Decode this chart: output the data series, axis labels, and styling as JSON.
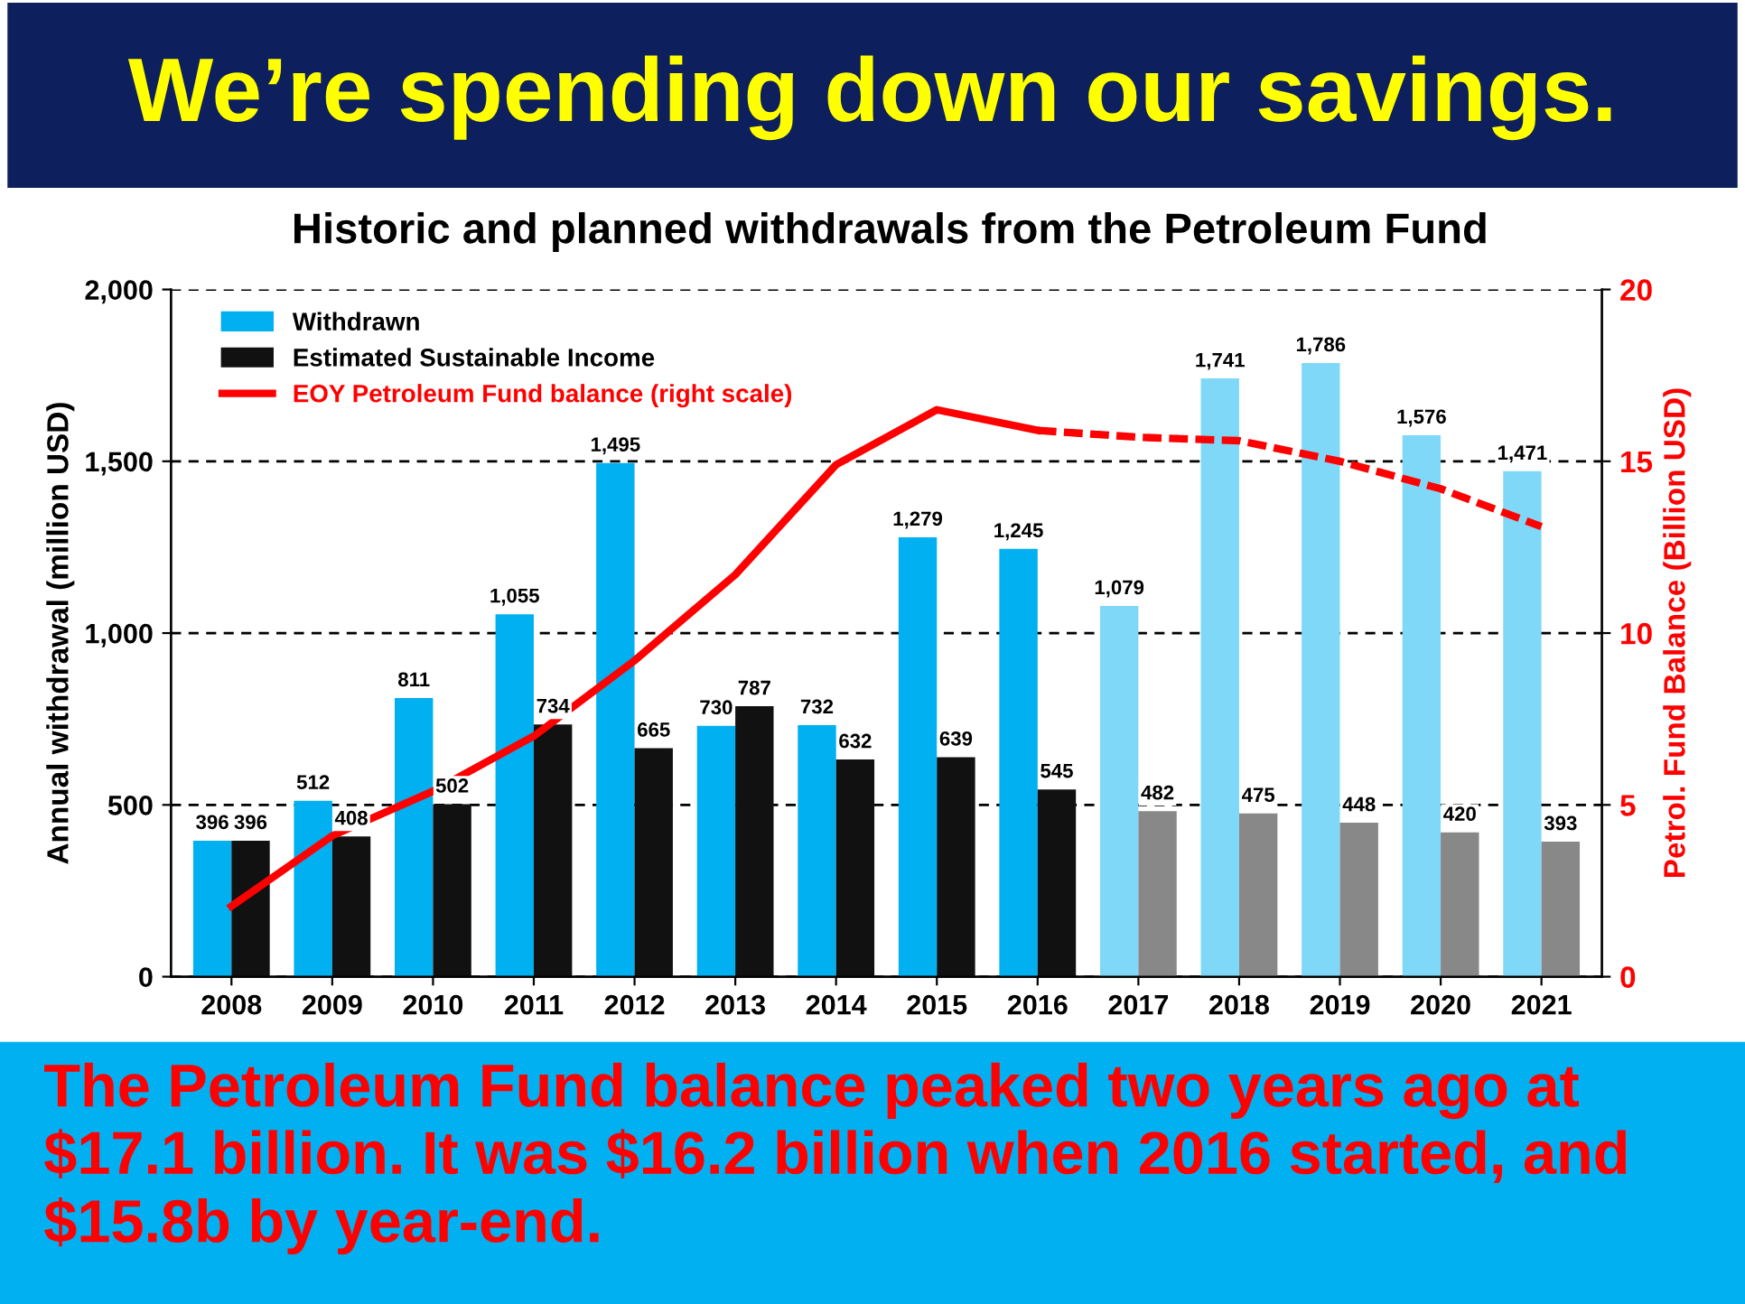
{
  "chart_data": {
    "type": "bar",
    "title": "We’re spending down our savings.",
    "subtitle": "Historic and planned withdrawals from the Petroleum Fund",
    "ylabel": "Annual withdrawal (million USD)",
    "y2label": "Petrol. Fund Balance (Billion USD)",
    "annotations": [
      "The Petroleum Fund balance peaked two years ago at $17.1 billion. It was $16.2 billion when 2016 started, and $15.8b by year-end."
    ],
    "categories": [
      "2008",
      "2009",
      "2010",
      "2011",
      "2012",
      "2013",
      "2014",
      "2015",
      "2016",
      "2017",
      "2018",
      "2019",
      "2020",
      "2021"
    ],
    "series": [
      {
        "name": "Withdrawn",
        "color": "#00b0f0",
        "colors": [
          "#00b0f0",
          "#00b0f0",
          "#00b0f0",
          "#00b0f0",
          "#00b0f0",
          "#00b0f0",
          "#00b0f0",
          "#00b0f0",
          "#00b0f0",
          "#80d8f8",
          "#80d8f8",
          "#80d8f8",
          "#80d8f8",
          "#80d8f8"
        ],
        "values": [
          396,
          512,
          811,
          1055,
          1495,
          730,
          732,
          1279,
          1245,
          1079,
          1741,
          1786,
          1576,
          1471
        ],
        "value_labels": [
          "396",
          "512",
          "811",
          "1,055",
          "1,495",
          "730",
          "732",
          "1,279",
          "1,245",
          "1,079",
          "1,741",
          "1,786",
          "1,576",
          "1,471"
        ]
      },
      {
        "name": "Estimated Sustainable Income",
        "color": "#111111",
        "colors": [
          "#111111",
          "#111111",
          "#111111",
          "#111111",
          "#111111",
          "#111111",
          "#111111",
          "#111111",
          "#111111",
          "#888888",
          "#888888",
          "#888888",
          "#888888",
          "#888888"
        ],
        "values": [
          396,
          408,
          502,
          734,
          665,
          787,
          632,
          639,
          545,
          482,
          475,
          448,
          420,
          393
        ],
        "value_labels": [
          "396",
          "408",
          "502",
          "734",
          "665",
          "787",
          "632",
          "639",
          "545",
          "482",
          "475",
          "448",
          "420",
          "393"
        ]
      },
      {
        "name": "EOY Petroleum Fund balance (right scale)",
        "type": "line",
        "axis": "y2",
        "color": "#ff0000",
        "line_style": "solid",
        "values": [
          2.05,
          4.1,
          5.4,
          7.0,
          9.2,
          11.7,
          14.9,
          16.5,
          15.9,
          null,
          null,
          null,
          null,
          null
        ]
      },
      {
        "type": "line",
        "axis": "y2",
        "color": "#ff0000",
        "line_style": "dashed",
        "values": [
          null,
          null,
          null,
          null,
          null,
          null,
          null,
          null,
          15.9,
          15.7,
          15.6,
          15.0,
          14.2,
          13.1
        ]
      }
    ],
    "ylim": [
      0,
      2000
    ],
    "yticks": [
      0,
      500,
      {
        "value": 1000,
        "label": "1,000"
      },
      {
        "value": 1500,
        "label": "1,500"
      },
      {
        "value": 2000,
        "label": "2,000"
      }
    ],
    "y2lim": [
      0,
      20
    ],
    "y2ticks": [
      0,
      5,
      10,
      15,
      20
    ],
    "grid": "y",
    "legend": "top left"
  }
}
